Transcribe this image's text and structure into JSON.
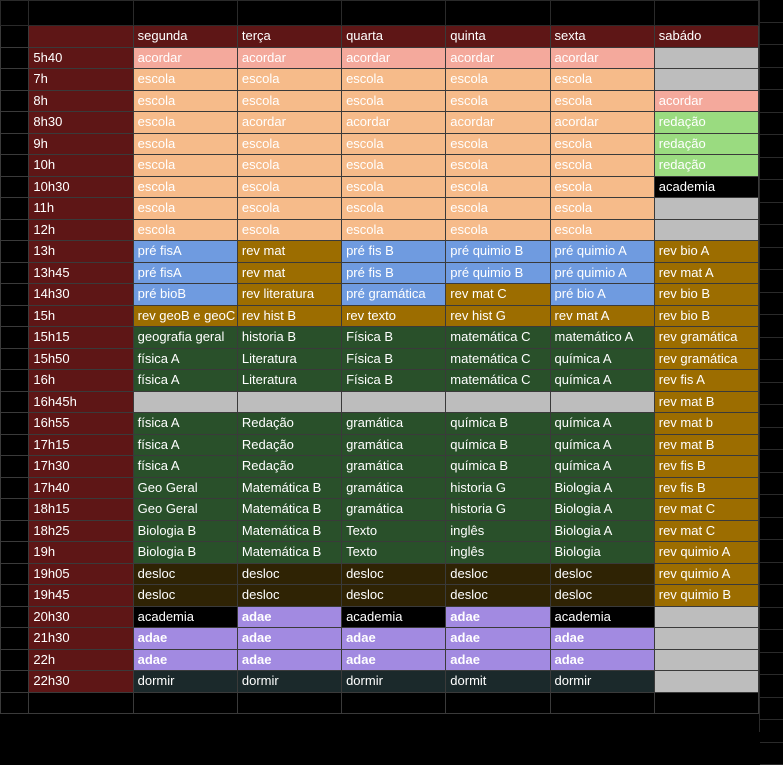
{
  "colors": {
    "time": "#5e1616",
    "header": "#5e1616",
    "acordar": "#f4a99c",
    "escola": "#f6bb8a",
    "redacao_sab": "#9adb80",
    "black": "#000000",
    "gray": "#bdbdbd",
    "blue": "#6f9be0",
    "gold": "#9c6d00",
    "green": "#29502a",
    "dark": "#2f2304",
    "purple": "#a28ae1",
    "slate": "#1b292b"
  },
  "days": [
    "segunda",
    "terça",
    "quarta",
    "quinta",
    "sexta",
    "sabádo"
  ],
  "rows": [
    {
      "time": "5h40",
      "cells": [
        [
          "acordar",
          "acordar"
        ],
        [
          "acordar",
          "acordar"
        ],
        [
          "acordar",
          "acordar"
        ],
        [
          "acordar",
          "acordar"
        ],
        [
          "acordar",
          "acordar"
        ],
        [
          "",
          "gray"
        ]
      ]
    },
    {
      "time": "7h",
      "cells": [
        [
          "escola",
          "escola"
        ],
        [
          "escola",
          "escola"
        ],
        [
          "escola",
          "escola"
        ],
        [
          "escola",
          "escola"
        ],
        [
          "escola",
          "escola"
        ],
        [
          "",
          "gray"
        ]
      ]
    },
    {
      "time": "8h",
      "cells": [
        [
          "escola",
          "escola"
        ],
        [
          "escola",
          "escola"
        ],
        [
          "escola",
          "escola"
        ],
        [
          "escola",
          "escola"
        ],
        [
          "escola",
          "escola"
        ],
        [
          "acordar",
          "acordar"
        ]
      ]
    },
    {
      "time": "8h30",
      "cells": [
        [
          "escola",
          "escola"
        ],
        [
          "acordar",
          "escola"
        ],
        [
          "acordar",
          "escola"
        ],
        [
          "acordar",
          "escola"
        ],
        [
          "acordar",
          "escola"
        ],
        [
          "redação",
          "redacao_sab"
        ]
      ]
    },
    {
      "time": "9h",
      "cells": [
        [
          "escola",
          "escola"
        ],
        [
          "escola",
          "escola"
        ],
        [
          "escola",
          "escola"
        ],
        [
          "escola",
          "escola"
        ],
        [
          "escola",
          "escola"
        ],
        [
          "redação",
          "redacao_sab"
        ]
      ]
    },
    {
      "time": "10h",
      "cells": [
        [
          "escola",
          "escola"
        ],
        [
          "escola",
          "escola"
        ],
        [
          "escola",
          "escola"
        ],
        [
          "escola",
          "escola"
        ],
        [
          "escola",
          "escola"
        ],
        [
          "redação",
          "redacao_sab"
        ]
      ]
    },
    {
      "time": "10h30",
      "cells": [
        [
          "escola",
          "escola"
        ],
        [
          "escola",
          "escola"
        ],
        [
          "escola",
          "escola"
        ],
        [
          "escola",
          "escola"
        ],
        [
          "escola",
          "escola"
        ],
        [
          "academia",
          "black"
        ]
      ]
    },
    {
      "time": "11h",
      "cells": [
        [
          "escola",
          "escola"
        ],
        [
          "escola",
          "escola"
        ],
        [
          "escola",
          "escola"
        ],
        [
          "escola",
          "escola"
        ],
        [
          "escola",
          "escola"
        ],
        [
          "",
          "gray"
        ]
      ]
    },
    {
      "time": "12h",
      "cells": [
        [
          "escola",
          "escola"
        ],
        [
          "escola",
          "escola"
        ],
        [
          "escola",
          "escola"
        ],
        [
          "escola",
          "escola"
        ],
        [
          "escola",
          "escola"
        ],
        [
          "",
          "gray"
        ]
      ]
    },
    {
      "time": "13h",
      "cells": [
        [
          "pré fisA",
          "blue"
        ],
        [
          "rev mat",
          "gold"
        ],
        [
          "pré fis B",
          "blue"
        ],
        [
          "pré quimio B",
          "blue"
        ],
        [
          "pré quimio A",
          "blue"
        ],
        [
          "rev bio A",
          "gold"
        ]
      ]
    },
    {
      "time": "13h45",
      "cells": [
        [
          "pré fisA",
          "blue"
        ],
        [
          "rev mat",
          "gold"
        ],
        [
          "pré fis B",
          "blue"
        ],
        [
          "pré quimio B",
          "blue"
        ],
        [
          "pré quimio A",
          "blue"
        ],
        [
          "rev mat A",
          "gold"
        ]
      ]
    },
    {
      "time": "14h30",
      "cells": [
        [
          "pré bioB",
          "blue"
        ],
        [
          "rev literatura",
          "gold"
        ],
        [
          "pré gramática",
          "blue"
        ],
        [
          "rev mat C",
          "gold"
        ],
        [
          "pré bio A",
          "blue"
        ],
        [
          "rev bio B",
          "gold"
        ]
      ]
    },
    {
      "time": "15h",
      "cells": [
        [
          "rev geoB e geoC",
          "gold"
        ],
        [
          "rev hist B",
          "gold"
        ],
        [
          "rev texto",
          "gold"
        ],
        [
          "rev hist G",
          "gold"
        ],
        [
          "rev mat A",
          "gold"
        ],
        [
          "rev bio B",
          "gold"
        ]
      ]
    },
    {
      "time": "15h15",
      "cells": [
        [
          "geografia geral",
          "green"
        ],
        [
          "historia B",
          "green"
        ],
        [
          "Física B",
          "green"
        ],
        [
          "matemática C",
          "green"
        ],
        [
          "matemático A",
          "green"
        ],
        [
          "rev gramática",
          "gold"
        ]
      ]
    },
    {
      "time": "15h50",
      "cells": [
        [
          "física A",
          "green"
        ],
        [
          "Literatura",
          "green"
        ],
        [
          "Física B",
          "green"
        ],
        [
          "matemática C",
          "green"
        ],
        [
          "química A",
          "green"
        ],
        [
          "rev gramática",
          "gold"
        ]
      ]
    },
    {
      "time": "16h",
      "cells": [
        [
          "física A",
          "green"
        ],
        [
          "Literatura",
          "green"
        ],
        [
          "Física B",
          "green"
        ],
        [
          "matemática C",
          "green"
        ],
        [
          "química A",
          "green"
        ],
        [
          "rev fis A",
          "gold"
        ]
      ]
    },
    {
      "time": "16h45h",
      "cells": [
        [
          "",
          "gray"
        ],
        [
          "",
          "gray"
        ],
        [
          "",
          "gray"
        ],
        [
          "",
          "gray"
        ],
        [
          "",
          "gray"
        ],
        [
          "rev mat B",
          "gold"
        ]
      ]
    },
    {
      "time": "16h55",
      "cells": [
        [
          "física A",
          "green"
        ],
        [
          "Redação",
          "green"
        ],
        [
          "gramática",
          "green"
        ],
        [
          "química B",
          "green"
        ],
        [
          "química A",
          "green"
        ],
        [
          "rev mat b",
          "gold"
        ]
      ]
    },
    {
      "time": "17h15",
      "cells": [
        [
          "física A",
          "green"
        ],
        [
          "Redação",
          "green"
        ],
        [
          "gramática",
          "green"
        ],
        [
          "química B",
          "green"
        ],
        [
          "química A",
          "green"
        ],
        [
          "rev mat B",
          "gold"
        ]
      ]
    },
    {
      "time": "17h30",
      "cells": [
        [
          "física A",
          "green"
        ],
        [
          "Redação",
          "green"
        ],
        [
          "gramática",
          "green"
        ],
        [
          "química B",
          "green"
        ],
        [
          "química A",
          "green"
        ],
        [
          "rev fis B",
          "gold"
        ]
      ]
    },
    {
      "time": "17h40",
      "cells": [
        [
          "Geo Geral",
          "green"
        ],
        [
          "Matemática B",
          "green"
        ],
        [
          "gramática",
          "green"
        ],
        [
          "historia G",
          "green"
        ],
        [
          "Biologia A",
          "green"
        ],
        [
          "rev fis B",
          "gold"
        ]
      ]
    },
    {
      "time": "18h15",
      "cells": [
        [
          "Geo Geral",
          "green"
        ],
        [
          "Matemática B",
          "green"
        ],
        [
          "gramática",
          "green"
        ],
        [
          "historia G",
          "green"
        ],
        [
          "Biologia A",
          "green"
        ],
        [
          "rev mat C",
          "gold"
        ]
      ]
    },
    {
      "time": "18h25",
      "cells": [
        [
          "Biologia B",
          "green"
        ],
        [
          "Matemática B",
          "green"
        ],
        [
          "Texto",
          "green"
        ],
        [
          "inglês",
          "green"
        ],
        [
          "Biologia A",
          "green"
        ],
        [
          "rev mat C",
          "gold"
        ]
      ]
    },
    {
      "time": "19h",
      "cells": [
        [
          "Biologia B",
          "green"
        ],
        [
          "Matemática B",
          "green"
        ],
        [
          "Texto",
          "green"
        ],
        [
          "inglês",
          "green"
        ],
        [
          "Biologia",
          "green"
        ],
        [
          "rev quimio A",
          "gold"
        ]
      ]
    },
    {
      "time": "19h05",
      "cells": [
        [
          "desloc",
          "dark"
        ],
        [
          "desloc",
          "dark"
        ],
        [
          "desloc",
          "dark"
        ],
        [
          "desloc",
          "dark"
        ],
        [
          "desloc",
          "dark"
        ],
        [
          "rev quimio A",
          "gold"
        ]
      ]
    },
    {
      "time": "19h45",
      "cells": [
        [
          "desloc",
          "dark"
        ],
        [
          "desloc",
          "dark"
        ],
        [
          "desloc",
          "dark"
        ],
        [
          "desloc",
          "dark"
        ],
        [
          "desloc",
          "dark"
        ],
        [
          "rev quimio B",
          "gold"
        ]
      ]
    },
    {
      "time": "20h30",
      "cells": [
        [
          "academia",
          "black"
        ],
        [
          "adae",
          "purple"
        ],
        [
          "academia",
          "black"
        ],
        [
          "adae",
          "purple"
        ],
        [
          "academia",
          "black"
        ],
        [
          "",
          "gray"
        ]
      ]
    },
    {
      "time": "21h30",
      "cells": [
        [
          "adae",
          "purple"
        ],
        [
          "adae",
          "purple"
        ],
        [
          "adae",
          "purple"
        ],
        [
          "adae",
          "purple"
        ],
        [
          "adae",
          "purple"
        ],
        [
          "",
          "gray"
        ]
      ]
    },
    {
      "time": "22h",
      "cells": [
        [
          "adae",
          "purple"
        ],
        [
          "adae",
          "purple"
        ],
        [
          "adae",
          "purple"
        ],
        [
          "adae",
          "purple"
        ],
        [
          "adae",
          "purple"
        ],
        [
          "",
          "gray"
        ]
      ]
    },
    {
      "time": "22h30",
      "cells": [
        [
          "dormir",
          "slate"
        ],
        [
          "dormir",
          "slate"
        ],
        [
          "dormir",
          "slate"
        ],
        [
          "dormit",
          "slate"
        ],
        [
          "dormir",
          "slate"
        ],
        [
          "",
          "gray"
        ]
      ]
    }
  ]
}
